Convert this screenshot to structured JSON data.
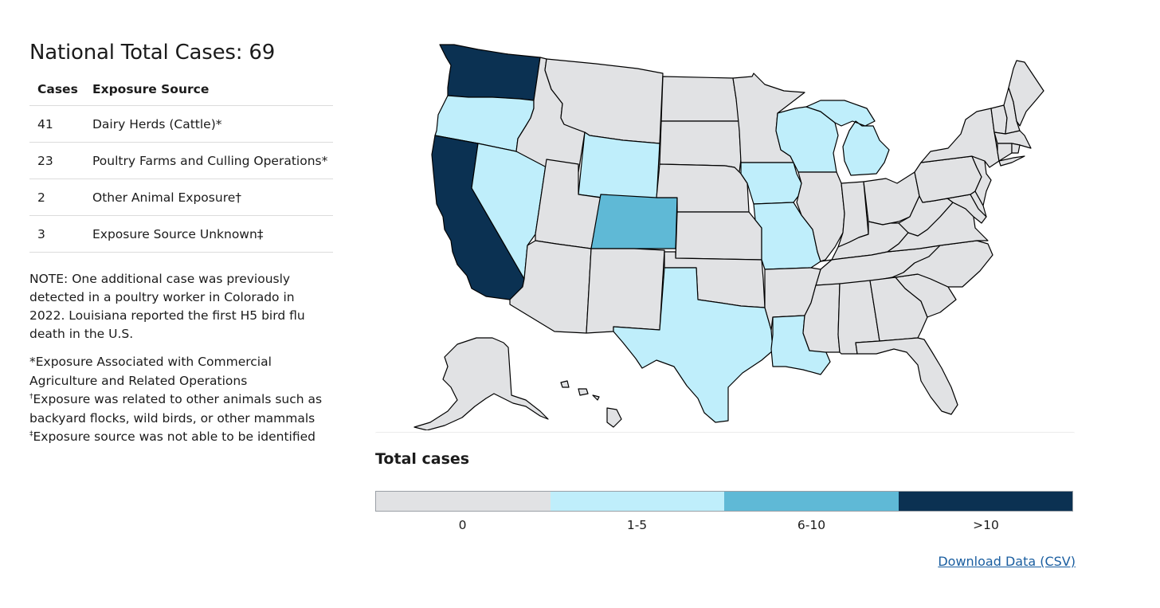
{
  "title": "National Total Cases: 69",
  "table": {
    "headers": [
      "Cases",
      "Exposure Source"
    ],
    "rows": [
      {
        "cases": "41",
        "source": "Dairy Herds (Cattle)*"
      },
      {
        "cases": "23",
        "source": "Poultry Farms and Culling Operations*"
      },
      {
        "cases": "2",
        "source": "Other Animal Exposure†"
      },
      {
        "cases": "3",
        "source": "Exposure Source Unknown‡"
      }
    ]
  },
  "note": "NOTE: One additional case was previously detected in a poultry worker in Colorado in 2022. Louisiana reported the first H5 bird flu death in the U.S.",
  "footnotes": {
    "star": "*Exposure Associated with Commercial Agriculture and Related Operations",
    "dagger_mark": "†",
    "dagger": "Exposure was related to other animals such as backyard flocks, wild birds, or other mammals",
    "ddagger_mark": "‡",
    "ddagger": "Exposure source was not able to be identified"
  },
  "legend": {
    "title": "Total cases",
    "bins": [
      {
        "label": "0",
        "color": "#e1e2e4"
      },
      {
        "label": "1-5",
        "color": "#bfeefb"
      },
      {
        "label": "6-10",
        "color": "#5fb9d6"
      },
      {
        "label": ">10",
        "color": "#0b3152"
      }
    ]
  },
  "download_label": "Download Data (CSV)",
  "map_data": {
    "bin_colors": {
      "0": "#e1e2e4",
      "1-5": "#bfeefb",
      "6-10": "#5fb9d6",
      ">10": "#0b3152"
    },
    "states": [
      {
        "name": "Washington",
        "bin": ">10"
      },
      {
        "name": "California",
        "bin": ">10"
      },
      {
        "name": "Colorado",
        "bin": "6-10"
      },
      {
        "name": "Oregon",
        "bin": "1-5"
      },
      {
        "name": "Nevada",
        "bin": "1-5"
      },
      {
        "name": "Wyoming",
        "bin": "1-5"
      },
      {
        "name": "Texas",
        "bin": "1-5"
      },
      {
        "name": "Louisiana",
        "bin": "1-5"
      },
      {
        "name": "Iowa",
        "bin": "1-5"
      },
      {
        "name": "Missouri",
        "bin": "1-5"
      },
      {
        "name": "Wisconsin",
        "bin": "1-5"
      },
      {
        "name": "Michigan",
        "bin": "1-5"
      },
      {
        "name": "Idaho",
        "bin": "0"
      },
      {
        "name": "Montana",
        "bin": "0"
      },
      {
        "name": "Utah",
        "bin": "0"
      },
      {
        "name": "Arizona",
        "bin": "0"
      },
      {
        "name": "New Mexico",
        "bin": "0"
      },
      {
        "name": "North Dakota",
        "bin": "0"
      },
      {
        "name": "South Dakota",
        "bin": "0"
      },
      {
        "name": "Nebraska",
        "bin": "0"
      },
      {
        "name": "Kansas",
        "bin": "0"
      },
      {
        "name": "Oklahoma",
        "bin": "0"
      },
      {
        "name": "Minnesota",
        "bin": "0"
      },
      {
        "name": "Arkansas",
        "bin": "0"
      },
      {
        "name": "Illinois",
        "bin": "0"
      },
      {
        "name": "Indiana",
        "bin": "0"
      },
      {
        "name": "Ohio",
        "bin": "0"
      },
      {
        "name": "Kentucky",
        "bin": "0"
      },
      {
        "name": "Tennessee",
        "bin": "0"
      },
      {
        "name": "Mississippi",
        "bin": "0"
      },
      {
        "name": "Alabama",
        "bin": "0"
      },
      {
        "name": "Georgia",
        "bin": "0"
      },
      {
        "name": "Florida",
        "bin": "0"
      },
      {
        "name": "South Carolina",
        "bin": "0"
      },
      {
        "name": "North Carolina",
        "bin": "0"
      },
      {
        "name": "Virginia",
        "bin": "0"
      },
      {
        "name": "West Virginia",
        "bin": "0"
      },
      {
        "name": "Maryland",
        "bin": "0"
      },
      {
        "name": "Delaware",
        "bin": "0"
      },
      {
        "name": "Pennsylvania",
        "bin": "0"
      },
      {
        "name": "New Jersey",
        "bin": "0"
      },
      {
        "name": "New York",
        "bin": "0"
      },
      {
        "name": "Connecticut",
        "bin": "0"
      },
      {
        "name": "Rhode Island",
        "bin": "0"
      },
      {
        "name": "Massachusetts",
        "bin": "0"
      },
      {
        "name": "Vermont",
        "bin": "0"
      },
      {
        "name": "New Hampshire",
        "bin": "0"
      },
      {
        "name": "Maine",
        "bin": "0"
      },
      {
        "name": "Alaska",
        "bin": "0"
      },
      {
        "name": "Hawaii",
        "bin": "0"
      }
    ]
  }
}
